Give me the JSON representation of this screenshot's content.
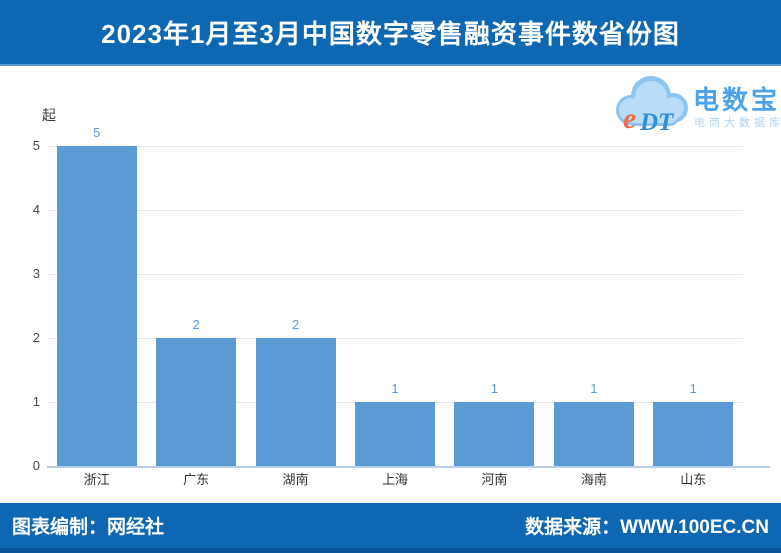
{
  "header": {
    "title": "2023年1月至3月中国数字零售融资事件数省份图"
  },
  "logo": {
    "cloud_text": "eDT",
    "brand": "电数宝",
    "subtitle": "电商大数据库"
  },
  "chart_data": {
    "type": "bar",
    "title": "2023年1月至3月中国数字零售融资事件数省份图",
    "unit_label": "起",
    "categories": [
      "浙江",
      "广东",
      "湖南",
      "上海",
      "河南",
      "海南",
      "山东"
    ],
    "values": [
      5,
      2,
      2,
      1,
      1,
      1,
      1
    ],
    "xlabel": "",
    "ylabel": "起",
    "ylim": [
      0,
      5
    ],
    "yticks": [
      0,
      1,
      2,
      3,
      4,
      5
    ],
    "grid": true,
    "legend": false,
    "bar_color": "#5b9bd5",
    "value_label_color": "#5b9bd5"
  },
  "footer": {
    "left": "图表编制：网经社",
    "right": "数据来源：WWW.100EC.CN"
  },
  "colors": {
    "banner_blue": "#0e67b2",
    "banner_border": "#5b9bd5",
    "footer_bottom": "#0a5599",
    "bar_blue": "#5b9bd5",
    "gridline": "#e6e6ec",
    "axis_line": "#b7cfe9",
    "logo_blue": "#4aa3e8",
    "logo_sub": "#b3d4f0",
    "logo_e_orange": "#ee6c45"
  }
}
